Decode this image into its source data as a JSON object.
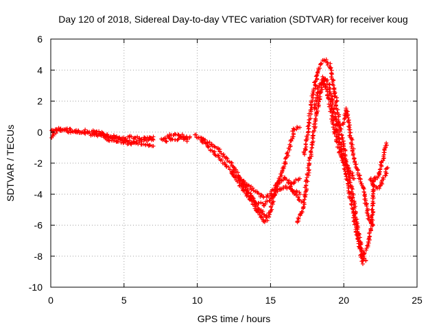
{
  "chart_data": {
    "type": "scatter",
    "title": "Day 120 of 2018, Sidereal Day-to-day VTEC variation (SDTVAR) for receiver koug",
    "xlabel": "GPS time / hours",
    "ylabel": "SDTVAR / TECUs",
    "xlim": [
      0,
      25
    ],
    "ylim": [
      -10,
      6
    ],
    "xticks": [
      0,
      5,
      10,
      15,
      20,
      25
    ],
    "yticks": [
      -10,
      -8,
      -6,
      -4,
      -2,
      0,
      2,
      4,
      6
    ],
    "grid": true,
    "marker": "+",
    "color": "#ff0000",
    "series": [
      {
        "name": "SDTVAR",
        "tracks": [
          [
            [
              0.0,
              0.1
            ],
            [
              0.5,
              0.2
            ],
            [
              1.0,
              0.1
            ],
            [
              1.5,
              0.0
            ],
            [
              2.0,
              0.0
            ],
            [
              2.5,
              0.1
            ],
            [
              3.0,
              0.0
            ],
            [
              3.5,
              0.0
            ],
            [
              4.0,
              -0.3
            ],
            [
              4.5,
              -0.4
            ],
            [
              5.0,
              -0.5
            ],
            [
              5.5,
              -0.6
            ],
            [
              6.0,
              -0.7
            ],
            [
              6.5,
              -0.8
            ],
            [
              7.0,
              -0.9
            ]
          ],
          [
            [
              0.0,
              -0.3
            ],
            [
              0.5,
              0.1
            ],
            [
              1.0,
              0.2
            ],
            [
              1.5,
              0.1
            ],
            [
              2.0,
              0.0
            ],
            [
              2.5,
              -0.1
            ],
            [
              3.0,
              -0.2
            ],
            [
              3.5,
              -0.2
            ],
            [
              4.0,
              -0.3
            ],
            [
              4.5,
              -0.3
            ],
            [
              5.0,
              -0.4
            ],
            [
              5.5,
              -0.3
            ],
            [
              6.0,
              -0.4
            ],
            [
              6.5,
              -0.4
            ],
            [
              7.0,
              -0.5
            ]
          ],
          [
            [
              3.0,
              0.1
            ],
            [
              3.5,
              -0.3
            ],
            [
              4.0,
              -0.5
            ],
            [
              4.5,
              -0.7
            ],
            [
              5.0,
              -0.6
            ],
            [
              5.5,
              -0.8
            ],
            [
              6.0,
              -0.6
            ],
            [
              6.5,
              -0.5
            ],
            [
              7.0,
              -0.3
            ]
          ],
          [
            [
              7.5,
              -0.5
            ],
            [
              8.0,
              -0.3
            ],
            [
              8.5,
              -0.1
            ],
            [
              9.0,
              -0.4
            ],
            [
              9.5,
              -0.3
            ]
          ],
          [
            [
              7.8,
              -0.6
            ],
            [
              8.2,
              -0.4
            ],
            [
              8.6,
              -0.5
            ],
            [
              9.0,
              -0.2
            ],
            [
              9.3,
              -0.6
            ]
          ],
          [
            [
              9.8,
              -0.2
            ],
            [
              10.3,
              -0.4
            ],
            [
              10.8,
              -0.7
            ],
            [
              11.3,
              -1.0
            ],
            [
              11.8,
              -1.5
            ],
            [
              12.3,
              -2.0
            ],
            [
              12.8,
              -2.8
            ],
            [
              13.3,
              -3.5
            ],
            [
              13.8,
              -4.3
            ],
            [
              14.3,
              -5.0
            ],
            [
              14.7,
              -5.5
            ]
          ],
          [
            [
              10.2,
              -0.5
            ],
            [
              10.8,
              -1.0
            ],
            [
              11.3,
              -1.5
            ],
            [
              11.8,
              -2.0
            ],
            [
              12.3,
              -2.5
            ],
            [
              12.8,
              -3.3
            ],
            [
              13.3,
              -4.0
            ],
            [
              13.8,
              -4.6
            ],
            [
              14.3,
              -5.3
            ],
            [
              14.6,
              -5.8
            ]
          ],
          [
            [
              12.5,
              -2.5
            ],
            [
              13.0,
              -3.3
            ],
            [
              13.5,
              -4.0
            ],
            [
              14.0,
              -4.5
            ],
            [
              14.5,
              -4.7
            ],
            [
              15.0,
              -4.3
            ],
            [
              15.5,
              -3.8
            ],
            [
              16.0,
              -3.5
            ],
            [
              16.5,
              -3.7
            ],
            [
              17.0,
              -4.0
            ]
          ],
          [
            [
              13.0,
              -3.0
            ],
            [
              13.5,
              -3.5
            ],
            [
              14.0,
              -3.8
            ],
            [
              14.5,
              -4.2
            ],
            [
              15.0,
              -4.0
            ],
            [
              15.5,
              -3.3
            ],
            [
              16.0,
              -3.0
            ],
            [
              16.5,
              -3.3
            ],
            [
              17.0,
              -3.0
            ]
          ],
          [
            [
              14.7,
              -5.7
            ],
            [
              15.0,
              -5.0
            ],
            [
              15.3,
              -4.0
            ],
            [
              15.6,
              -3.0
            ],
            [
              16.0,
              -2.0
            ],
            [
              16.3,
              -1.0
            ],
            [
              16.6,
              0.2
            ],
            [
              17.0,
              0.3
            ]
          ],
          [
            [
              16.2,
              -3.3
            ],
            [
              16.5,
              -3.8
            ],
            [
              16.8,
              -4.2
            ],
            [
              17.1,
              -4.5
            ]
          ],
          [
            [
              16.8,
              -5.8
            ],
            [
              17.2,
              -5.0
            ],
            [
              17.5,
              -3.0
            ],
            [
              17.8,
              -1.0
            ],
            [
              18.1,
              1.0
            ],
            [
              18.4,
              2.5
            ],
            [
              18.7,
              3.5
            ],
            [
              19.0,
              3.0
            ],
            [
              19.3,
              1.5
            ],
            [
              19.6,
              0.0
            ],
            [
              19.9,
              -1.5
            ],
            [
              20.2,
              -3.0
            ],
            [
              20.5,
              -4.5
            ],
            [
              20.8,
              -6.0
            ],
            [
              21.1,
              -7.5
            ],
            [
              21.3,
              -8.5
            ]
          ],
          [
            [
              17.3,
              -1.5
            ],
            [
              17.6,
              0.5
            ],
            [
              17.9,
              2.5
            ],
            [
              18.2,
              3.8
            ],
            [
              18.5,
              4.5
            ],
            [
              18.8,
              4.7
            ],
            [
              19.1,
              4.2
            ],
            [
              19.4,
              2.5
            ],
            [
              19.7,
              0.5
            ],
            [
              20.0,
              -1.0
            ],
            [
              20.3,
              -2.5
            ],
            [
              20.6,
              -4.0
            ],
            [
              20.9,
              -6.0
            ],
            [
              21.2,
              -7.5
            ],
            [
              21.5,
              -8.3
            ]
          ],
          [
            [
              18.0,
              1.5
            ],
            [
              18.3,
              3.0
            ],
            [
              18.6,
              3.5
            ],
            [
              18.9,
              2.5
            ],
            [
              19.2,
              1.0
            ],
            [
              19.5,
              -0.5
            ],
            [
              19.8,
              -1.5
            ],
            [
              20.1,
              -2.0
            ],
            [
              20.4,
              -2.5
            ],
            [
              20.7,
              -3.0
            ]
          ],
          [
            [
              19.5,
              0.5
            ],
            [
              19.9,
              0.5
            ],
            [
              20.2,
              1.5
            ],
            [
              20.5,
              -0.5
            ],
            [
              20.8,
              -2.0
            ],
            [
              21.1,
              -3.0
            ],
            [
              21.4,
              -4.0
            ],
            [
              21.7,
              -5.5
            ],
            [
              22.0,
              -6.0
            ]
          ],
          [
            [
              21.3,
              -8.0
            ],
            [
              21.6,
              -7.5
            ],
            [
              21.9,
              -6.0
            ],
            [
              22.0,
              -4.5
            ],
            [
              22.0,
              -3.0
            ],
            [
              22.3,
              -3.0
            ],
            [
              22.6,
              -2.0
            ],
            [
              22.9,
              -0.7
            ]
          ],
          [
            [
              21.8,
              -3.0
            ],
            [
              22.1,
              -3.5
            ],
            [
              22.4,
              -3.6
            ],
            [
              22.7,
              -3.0
            ],
            [
              23.0,
              -2.3
            ]
          ]
        ]
      }
    ]
  }
}
